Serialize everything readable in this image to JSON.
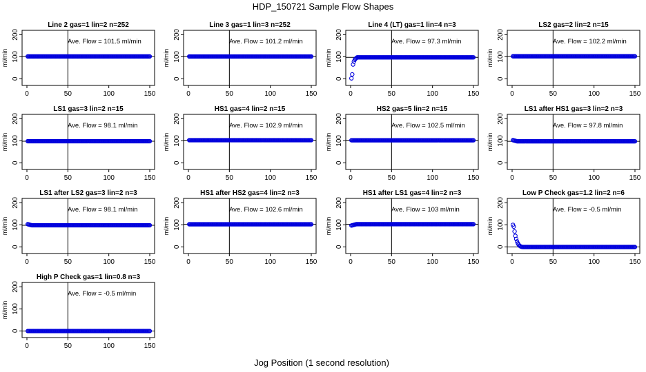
{
  "figure": {
    "title": "HDP_150721  Sample Flow Shapes",
    "xlabel": "Jog Position (1 second resolution)"
  },
  "chart_data": [
    {
      "type": "scatter",
      "title": "Line 2 gas=1 lin=2 n=252",
      "annotation": "Ave. Flow = 101.5  ml/min",
      "ylabel": "ml/min",
      "mean": 101.5,
      "shape": "flat",
      "xlim": [
        0,
        150
      ],
      "ylim": [
        -30,
        220
      ],
      "xticks": [
        0,
        50,
        100,
        150
      ],
      "yticks": [
        0,
        100,
        200
      ],
      "vline": 50
    },
    {
      "type": "scatter",
      "title": "Line 3 gas=1 lin=3 n=252",
      "annotation": "Ave. Flow = 101.2  ml/min",
      "ylabel": "ml/min",
      "mean": 101.2,
      "shape": "flat",
      "xlim": [
        0,
        150
      ],
      "ylim": [
        -30,
        220
      ],
      "xticks": [
        0,
        50,
        100,
        150
      ],
      "yticks": [
        0,
        100,
        200
      ],
      "vline": 50
    },
    {
      "type": "scatter",
      "title": "Line 4 (LT) gas=1 lin=4 n=3",
      "annotation": "Ave. Flow = 97.3  ml/min",
      "ylabel": "ml/min",
      "mean": 97.3,
      "shape": "rise",
      "start": [
        [
          1,
          2
        ],
        [
          2,
          20
        ],
        [
          3,
          65
        ],
        [
          4,
          78
        ],
        [
          5,
          86
        ],
        [
          6,
          91
        ],
        [
          7,
          94
        ]
      ],
      "xlim": [
        0,
        150
      ],
      "ylim": [
        -30,
        220
      ],
      "xticks": [
        0,
        50,
        100,
        150
      ],
      "yticks": [
        0,
        100,
        200
      ],
      "vline": 50
    },
    {
      "type": "scatter",
      "title": "LS2 gas=2 lin=2 n=15",
      "annotation": "Ave. Flow = 102.2  ml/min",
      "ylabel": "ml/min",
      "mean": 102.2,
      "shape": "flat",
      "xlim": [
        0,
        150
      ],
      "ylim": [
        -30,
        220
      ],
      "xticks": [
        0,
        50,
        100,
        150
      ],
      "yticks": [
        0,
        100,
        200
      ],
      "vline": 50
    },
    {
      "type": "scatter",
      "title": "LS1 gas=3 lin=2 n=15",
      "annotation": "Ave. Flow = 98.1  ml/min",
      "ylabel": "ml/min",
      "mean": 98.1,
      "shape": "flat",
      "xlim": [
        0,
        150
      ],
      "ylim": [
        -30,
        220
      ],
      "xticks": [
        0,
        50,
        100,
        150
      ],
      "yticks": [
        0,
        100,
        200
      ],
      "vline": 50
    },
    {
      "type": "scatter",
      "title": "HS1 gas=4 lin=2 n=15",
      "annotation": "Ave. Flow = 102.9  ml/min",
      "ylabel": "ml/min",
      "mean": 102.9,
      "shape": "flat",
      "xlim": [
        0,
        150
      ],
      "ylim": [
        -30,
        220
      ],
      "xticks": [
        0,
        50,
        100,
        150
      ],
      "yticks": [
        0,
        100,
        200
      ],
      "vline": 50
    },
    {
      "type": "scatter",
      "title": "HS2 gas=5 lin=2 n=15",
      "annotation": "Ave. Flow = 102.5  ml/min",
      "ylabel": "ml/min",
      "mean": 102.5,
      "shape": "flat",
      "xlim": [
        0,
        150
      ],
      "ylim": [
        -30,
        220
      ],
      "xticks": [
        0,
        50,
        100,
        150
      ],
      "yticks": [
        0,
        100,
        200
      ],
      "vline": 50
    },
    {
      "type": "scatter",
      "title": "LS1 after HS1 gas=3 lin=2 n=3",
      "annotation": "Ave. Flow = 97.8  ml/min",
      "ylabel": "ml/min",
      "mean": 97.8,
      "shape": "settle",
      "start": [
        [
          1,
          103
        ],
        [
          2,
          102
        ],
        [
          3,
          101
        ],
        [
          4,
          100
        ],
        [
          5,
          99
        ]
      ],
      "xlim": [
        0,
        150
      ],
      "ylim": [
        -30,
        220
      ],
      "xticks": [
        0,
        50,
        100,
        150
      ],
      "yticks": [
        0,
        100,
        200
      ],
      "vline": 50
    },
    {
      "type": "scatter",
      "title": "LS1 after LS2 gas=3 lin=2 n=3",
      "annotation": "Ave. Flow = 98.1  ml/min",
      "ylabel": "ml/min",
      "mean": 98.1,
      "shape": "settle",
      "start": [
        [
          1,
          103
        ],
        [
          2,
          102
        ],
        [
          3,
          101
        ],
        [
          4,
          100
        ],
        [
          5,
          99
        ]
      ],
      "xlim": [
        0,
        150
      ],
      "ylim": [
        -30,
        220
      ],
      "xticks": [
        0,
        50,
        100,
        150
      ],
      "yticks": [
        0,
        100,
        200
      ],
      "vline": 50
    },
    {
      "type": "scatter",
      "title": "HS1 after HS2 gas=4 lin=2 n=3",
      "annotation": "Ave. Flow = 102.6  ml/min",
      "ylabel": "ml/min",
      "mean": 102.6,
      "shape": "flat",
      "xlim": [
        0,
        150
      ],
      "ylim": [
        -30,
        220
      ],
      "xticks": [
        0,
        50,
        100,
        150
      ],
      "yticks": [
        0,
        100,
        200
      ],
      "vline": 50
    },
    {
      "type": "scatter",
      "title": "HS1 after LS1 gas=4 lin=2 n=3",
      "annotation": "Ave. Flow = 103  ml/min",
      "ylabel": "ml/min",
      "mean": 103,
      "shape": "rise",
      "start": [
        [
          1,
          97
        ],
        [
          2,
          98
        ],
        [
          3,
          99
        ],
        [
          4,
          100
        ],
        [
          5,
          101
        ],
        [
          6,
          102
        ]
      ],
      "xlim": [
        0,
        150
      ],
      "ylim": [
        -30,
        220
      ],
      "xticks": [
        0,
        50,
        100,
        150
      ],
      "yticks": [
        0,
        100,
        200
      ],
      "vline": 50
    },
    {
      "type": "scatter",
      "title": "Low P Check gas=1.2 lin=2 n=6",
      "annotation": "Ave. Flow = -0.5  ml/min",
      "ylabel": "ml/min",
      "mean": -0.5,
      "shape": "decay",
      "start": [
        [
          1,
          100
        ],
        [
          2,
          92
        ],
        [
          3,
          70
        ],
        [
          4,
          50
        ],
        [
          5,
          36
        ],
        [
          6,
          25
        ],
        [
          7,
          16
        ],
        [
          8,
          10
        ],
        [
          9,
          6
        ],
        [
          10,
          3
        ],
        [
          11,
          1
        ],
        [
          12,
          0
        ]
      ],
      "xlim": [
        0,
        150
      ],
      "ylim": [
        -30,
        220
      ],
      "xticks": [
        0,
        50,
        100,
        150
      ],
      "yticks": [
        0,
        100,
        200
      ],
      "vline": 50
    },
    {
      "type": "scatter",
      "title": "High P Check gas=1 lin=0.8 n=3",
      "annotation": "Ave. Flow = -0.5  ml/min",
      "ylabel": "ml/min",
      "mean": -0.5,
      "shape": "flat",
      "xlim": [
        0,
        150
      ],
      "ylim": [
        -30,
        220
      ],
      "xticks": [
        0,
        50,
        100,
        150
      ],
      "yticks": [
        0,
        100,
        200
      ],
      "vline": 50
    }
  ]
}
